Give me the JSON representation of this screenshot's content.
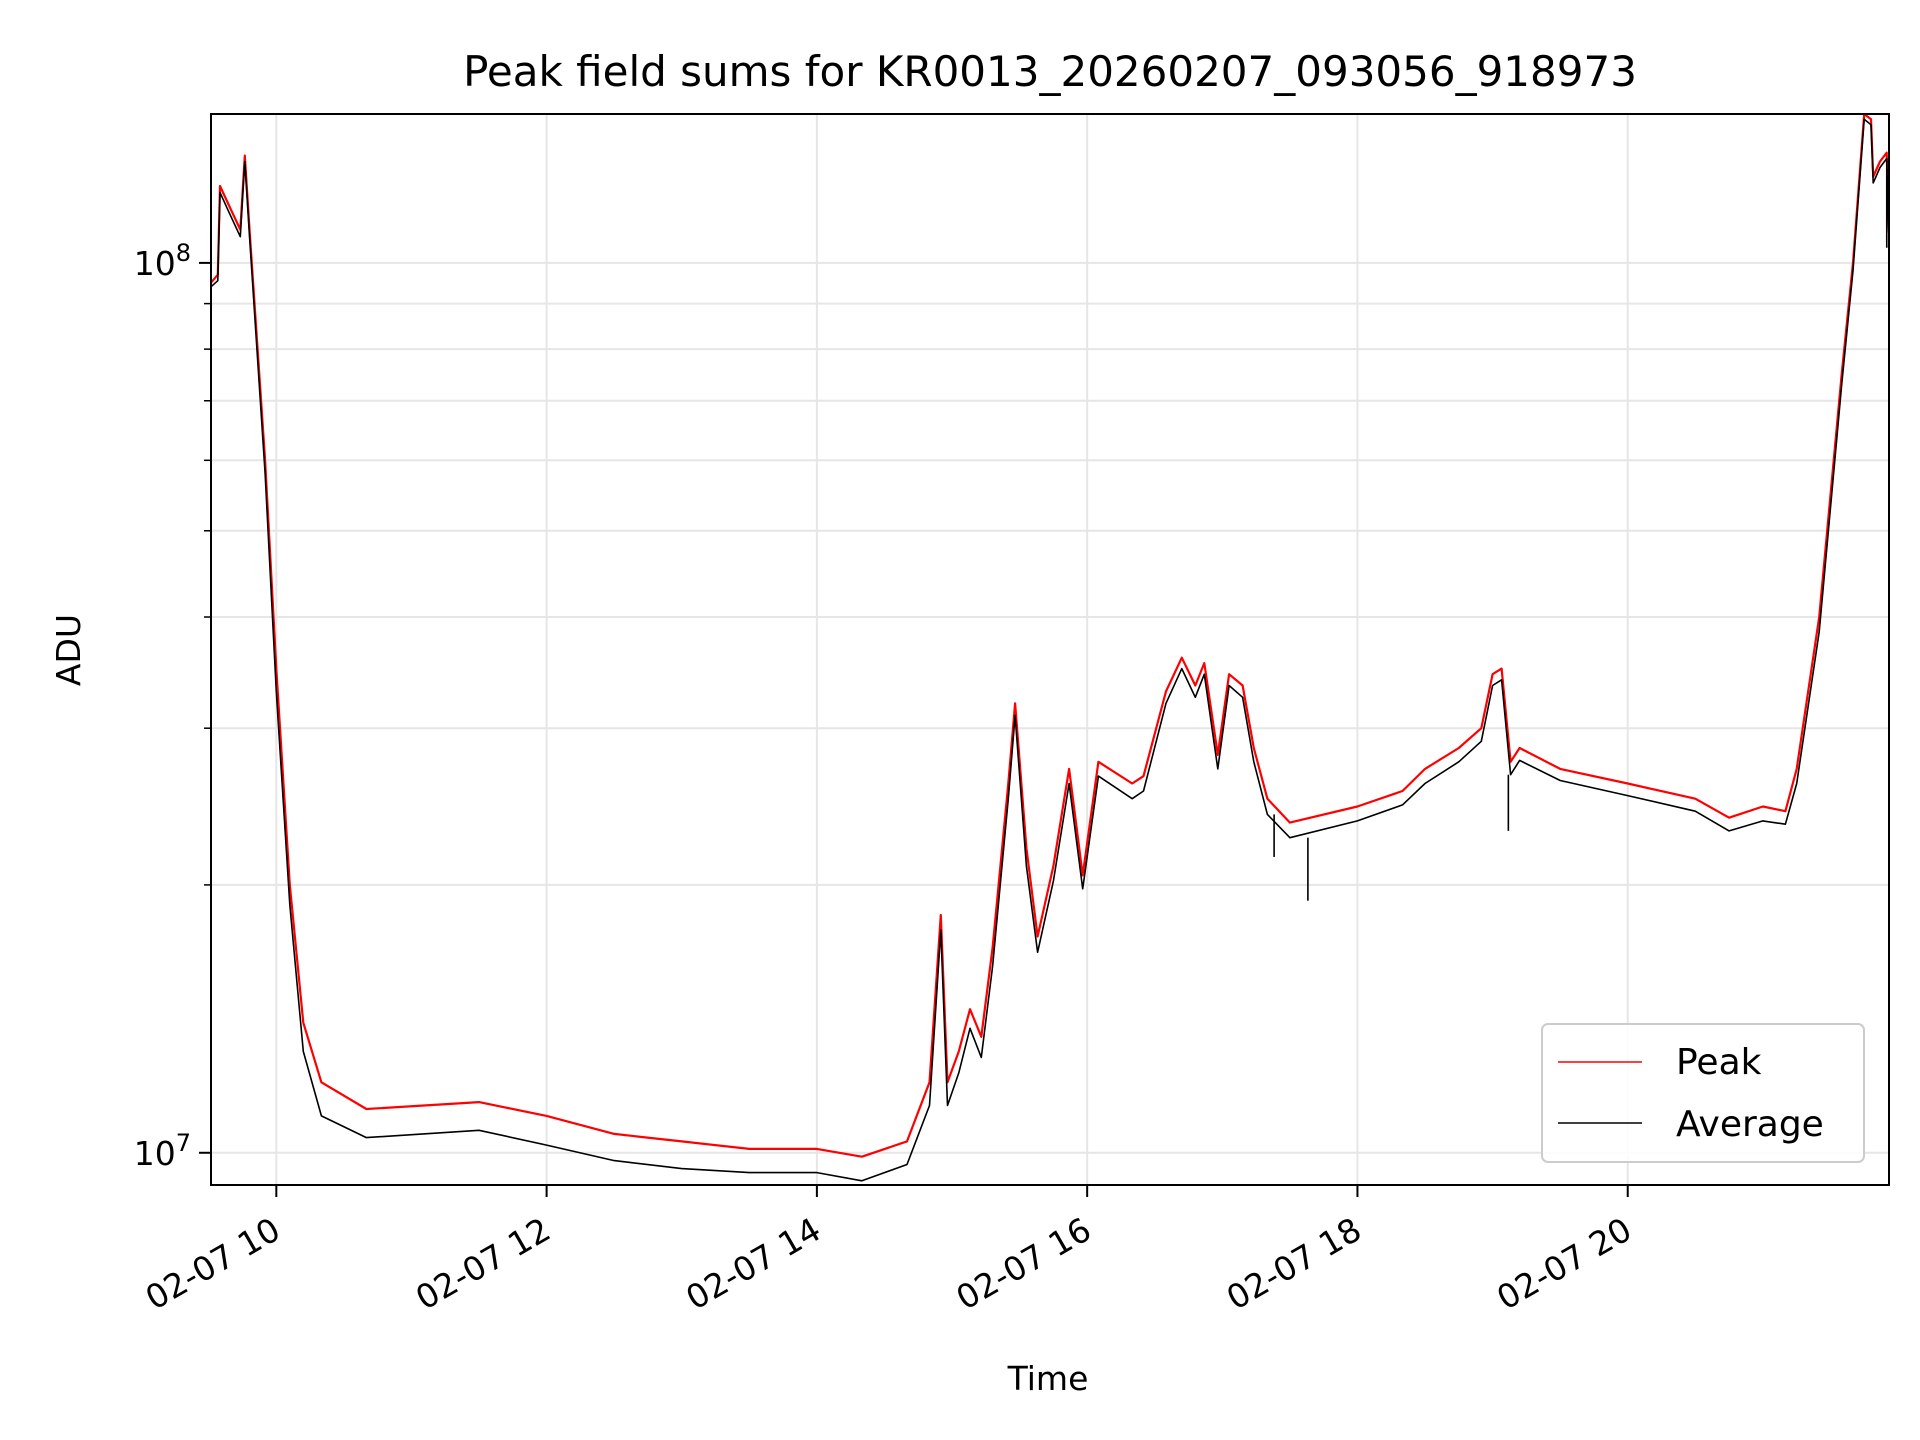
{
  "chart_data": {
    "type": "line",
    "title": "Peak field sums for KR0013_20260207_093056_918973",
    "xlabel": "Time",
    "ylabel": "ADU",
    "x_axis": {
      "type": "time",
      "range": [
        "2026-02-07 09:31",
        "2026-02-07 21:56"
      ],
      "ticks": [
        {
          "value": "2026-02-07 10:00",
          "label": "02-07 10"
        },
        {
          "value": "2026-02-07 12:00",
          "label": "02-07 12"
        },
        {
          "value": "2026-02-07 14:00",
          "label": "02-07 14"
        },
        {
          "value": "2026-02-07 16:00",
          "label": "02-07 16"
        },
        {
          "value": "2026-02-07 18:00",
          "label": "02-07 18"
        },
        {
          "value": "2026-02-07 20:00",
          "label": "02-07 20"
        }
      ]
    },
    "y_axis": {
      "scale": "log",
      "range": [
        9200000,
        147000000
      ],
      "major_ticks": [
        {
          "value": 10000000,
          "base": "10",
          "exp": "7"
        },
        {
          "value": 100000000,
          "base": "10",
          "exp": "8"
        }
      ],
      "minor_ticks": [
        20000000,
        30000000,
        40000000,
        50000000,
        60000000,
        70000000,
        80000000,
        90000000
      ]
    },
    "grid": true,
    "legend": {
      "placement": "lower-right"
    },
    "series": [
      {
        "name": "Peak",
        "color": "#ff0000",
        "points": [
          [
            "2026-02-07 09:31",
            95000000
          ],
          [
            "2026-02-07 09:34",
            97000000
          ],
          [
            "2026-02-07 09:35",
            122000000
          ],
          [
            "2026-02-07 09:39",
            116000000
          ],
          [
            "2026-02-07 09:44",
            109000000
          ],
          [
            "2026-02-07 09:46",
            132000000
          ],
          [
            "2026-02-07 09:48",
            110000000
          ],
          [
            "2026-02-07 09:55",
            60000000
          ],
          [
            "2026-02-07 10:00",
            35000000
          ],
          [
            "2026-02-07 10:06",
            20000000
          ],
          [
            "2026-02-07 10:12",
            14000000
          ],
          [
            "2026-02-07 10:20",
            12000000
          ],
          [
            "2026-02-07 10:40",
            11200000
          ],
          [
            "2026-02-07 11:30",
            11400000
          ],
          [
            "2026-02-07 12:00",
            11000000
          ],
          [
            "2026-02-07 12:30",
            10500000
          ],
          [
            "2026-02-07 13:00",
            10300000
          ],
          [
            "2026-02-07 13:30",
            10100000
          ],
          [
            "2026-02-07 14:00",
            10100000
          ],
          [
            "2026-02-07 14:20",
            9900000
          ],
          [
            "2026-02-07 14:40",
            10300000
          ],
          [
            "2026-02-07 14:50",
            12000000
          ],
          [
            "2026-02-07 14:55",
            18500000
          ],
          [
            "2026-02-07 14:58",
            12000000
          ],
          [
            "2026-02-07 15:03",
            13000000
          ],
          [
            "2026-02-07 15:08",
            14500000
          ],
          [
            "2026-02-07 15:13",
            13500000
          ],
          [
            "2026-02-07 15:18",
            17000000
          ],
          [
            "2026-02-07 15:25",
            26000000
          ],
          [
            "2026-02-07 15:28",
            32000000
          ],
          [
            "2026-02-07 15:33",
            22000000
          ],
          [
            "2026-02-07 15:38",
            17500000
          ],
          [
            "2026-02-07 15:45",
            21000000
          ],
          [
            "2026-02-07 15:52",
            27000000
          ],
          [
            "2026-02-07 15:58",
            20500000
          ],
          [
            "2026-02-07 16:05",
            27500000
          ],
          [
            "2026-02-07 16:20",
            26000000
          ],
          [
            "2026-02-07 16:25",
            26500000
          ],
          [
            "2026-02-07 16:35",
            33000000
          ],
          [
            "2026-02-07 16:42",
            36000000
          ],
          [
            "2026-02-07 16:48",
            33500000
          ],
          [
            "2026-02-07 16:52",
            35500000
          ],
          [
            "2026-02-07 16:58",
            28000000
          ],
          [
            "2026-02-07 17:03",
            34500000
          ],
          [
            "2026-02-07 17:09",
            33500000
          ],
          [
            "2026-02-07 17:14",
            28500000
          ],
          [
            "2026-02-07 17:20",
            25000000
          ],
          [
            "2026-02-07 17:30",
            23500000
          ],
          [
            "2026-02-07 18:00",
            24500000
          ],
          [
            "2026-02-07 18:20",
            25500000
          ],
          [
            "2026-02-07 18:30",
            27000000
          ],
          [
            "2026-02-07 18:45",
            28500000
          ],
          [
            "2026-02-07 18:55",
            30000000
          ],
          [
            "2026-02-07 19:00",
            34500000
          ],
          [
            "2026-02-07 19:04",
            35000000
          ],
          [
            "2026-02-07 19:08",
            27500000
          ],
          [
            "2026-02-07 19:12",
            28500000
          ],
          [
            "2026-02-07 19:30",
            27000000
          ],
          [
            "2026-02-07 20:00",
            26000000
          ],
          [
            "2026-02-07 20:30",
            25000000
          ],
          [
            "2026-02-07 20:45",
            23800000
          ],
          [
            "2026-02-07 21:00",
            24500000
          ],
          [
            "2026-02-07 21:10",
            24200000
          ],
          [
            "2026-02-07 21:15",
            27000000
          ],
          [
            "2026-02-07 21:25",
            40000000
          ],
          [
            "2026-02-07 21:35",
            75000000
          ],
          [
            "2026-02-07 21:40",
            100000000
          ],
          [
            "2026-02-07 21:45",
            147000000
          ],
          [
            "2026-02-07 21:48",
            145000000
          ],
          [
            "2026-02-07 21:49",
            125000000
          ],
          [
            "2026-02-07 21:52",
            130000000
          ],
          [
            "2026-02-07 21:55",
            133000000
          ],
          [
            "2026-02-07 21:56",
            108000000
          ]
        ]
      },
      {
        "name": "Average",
        "color": "#000000",
        "points": [
          [
            "2026-02-07 09:31",
            94000000
          ],
          [
            "2026-02-07 09:34",
            95500000
          ],
          [
            "2026-02-07 09:35",
            120000000
          ],
          [
            "2026-02-07 09:39",
            114000000
          ],
          [
            "2026-02-07 09:44",
            107000000
          ],
          [
            "2026-02-07 09:46",
            130000000
          ],
          [
            "2026-02-07 09:48",
            108000000
          ],
          [
            "2026-02-07 09:55",
            58000000
          ],
          [
            "2026-02-07 10:00",
            33000000
          ],
          [
            "2026-02-07 10:06",
            19000000
          ],
          [
            "2026-02-07 10:12",
            13000000
          ],
          [
            "2026-02-07 10:20",
            11000000
          ],
          [
            "2026-02-07 10:40",
            10400000
          ],
          [
            "2026-02-07 11:30",
            10600000
          ],
          [
            "2026-02-07 12:00",
            10200000
          ],
          [
            "2026-02-07 12:30",
            9800000
          ],
          [
            "2026-02-07 13:00",
            9600000
          ],
          [
            "2026-02-07 13:30",
            9500000
          ],
          [
            "2026-02-07 14:00",
            9500000
          ],
          [
            "2026-02-07 14:20",
            9300000
          ],
          [
            "2026-02-07 14:40",
            9700000
          ],
          [
            "2026-02-07 14:50",
            11300000
          ],
          [
            "2026-02-07 14:55",
            17800000
          ],
          [
            "2026-02-07 14:58",
            11300000
          ],
          [
            "2026-02-07 15:03",
            12300000
          ],
          [
            "2026-02-07 15:08",
            13800000
          ],
          [
            "2026-02-07 15:13",
            12800000
          ],
          [
            "2026-02-07 15:18",
            16200000
          ],
          [
            "2026-02-07 15:25",
            25000000
          ],
          [
            "2026-02-07 15:28",
            31000000
          ],
          [
            "2026-02-07 15:33",
            21000000
          ],
          [
            "2026-02-07 15:38",
            16800000
          ],
          [
            "2026-02-07 15:45",
            20200000
          ],
          [
            "2026-02-07 15:52",
            26000000
          ],
          [
            "2026-02-07 15:58",
            19800000
          ],
          [
            "2026-02-07 16:05",
            26500000
          ],
          [
            "2026-02-07 16:20",
            25000000
          ],
          [
            "2026-02-07 16:25",
            25500000
          ],
          [
            "2026-02-07 16:35",
            32000000
          ],
          [
            "2026-02-07 16:42",
            35000000
          ],
          [
            "2026-02-07 16:48",
            32500000
          ],
          [
            "2026-02-07 16:52",
            34500000
          ],
          [
            "2026-02-07 16:58",
            27000000
          ],
          [
            "2026-02-07 17:03",
            33500000
          ],
          [
            "2026-02-07 17:09",
            32500000
          ],
          [
            "2026-02-07 17:14",
            27500000
          ],
          [
            "2026-02-07 17:20",
            24000000
          ],
          [
            "2026-02-07 17:30",
            22600000
          ],
          [
            "2026-02-07 18:00",
            23600000
          ],
          [
            "2026-02-07 18:20",
            24600000
          ],
          [
            "2026-02-07 18:30",
            26000000
          ],
          [
            "2026-02-07 18:45",
            27500000
          ],
          [
            "2026-02-07 18:55",
            29000000
          ],
          [
            "2026-02-07 19:00",
            33500000
          ],
          [
            "2026-02-07 19:04",
            34000000
          ],
          [
            "2026-02-07 19:08",
            26600000
          ],
          [
            "2026-02-07 19:12",
            27600000
          ],
          [
            "2026-02-07 19:30",
            26200000
          ],
          [
            "2026-02-07 20:00",
            25200000
          ],
          [
            "2026-02-07 20:30",
            24200000
          ],
          [
            "2026-02-07 20:45",
            23000000
          ],
          [
            "2026-02-07 21:00",
            23600000
          ],
          [
            "2026-02-07 21:10",
            23400000
          ],
          [
            "2026-02-07 21:15",
            26000000
          ],
          [
            "2026-02-07 21:25",
            38500000
          ],
          [
            "2026-02-07 21:35",
            73000000
          ],
          [
            "2026-02-07 21:40",
            98000000
          ],
          [
            "2026-02-07 21:45",
            145000000
          ],
          [
            "2026-02-07 21:48",
            143000000
          ],
          [
            "2026-02-07 21:49",
            123000000
          ],
          [
            "2026-02-07 21:52",
            128000000
          ],
          [
            "2026-02-07 21:55",
            131000000
          ],
          [
            "2026-02-07 21:56",
            106000000
          ]
        ],
        "spikes": [
          [
            "2026-02-07 17:23",
            21500000
          ],
          [
            "2026-02-07 17:38",
            19200000
          ],
          [
            "2026-02-07 19:07",
            23000000
          ],
          [
            "2026-02-07 21:55",
            104000000
          ]
        ]
      }
    ]
  }
}
